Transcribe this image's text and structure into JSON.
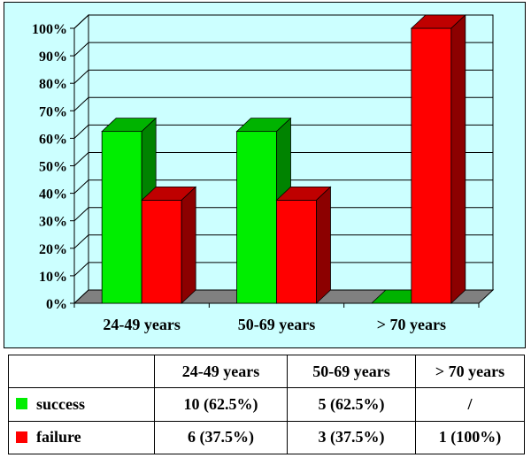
{
  "chart_data": {
    "type": "bar",
    "categories": [
      "24-49 years",
      "50-69 years",
      "> 70 years"
    ],
    "series": [
      {
        "name": "success",
        "values": [
          62.5,
          62.5,
          0
        ],
        "color": "#00ee00"
      },
      {
        "name": "failure",
        "values": [
          37.5,
          37.5,
          100
        ],
        "color": "#ff0000"
      }
    ],
    "ylim": [
      0,
      100
    ],
    "yticks": [
      "0%",
      "10%",
      "20%",
      "30%",
      "40%",
      "50%",
      "60%",
      "70%",
      "80%",
      "90%",
      "100%"
    ],
    "grid": true,
    "style": "3d-clustered"
  },
  "table": {
    "header": [
      "",
      "24-49 years",
      "50-69 years",
      "> 70 years"
    ],
    "rows": [
      {
        "label": "success",
        "color": "#00ee00",
        "cells": [
          "10 (62.5%)",
          "5 (62.5%)",
          "/"
        ]
      },
      {
        "label": "failure",
        "color": "#ff0000",
        "cells": [
          "6 (37.5%)",
          "3 (37.5%)",
          "1 (100%)"
        ]
      }
    ]
  }
}
